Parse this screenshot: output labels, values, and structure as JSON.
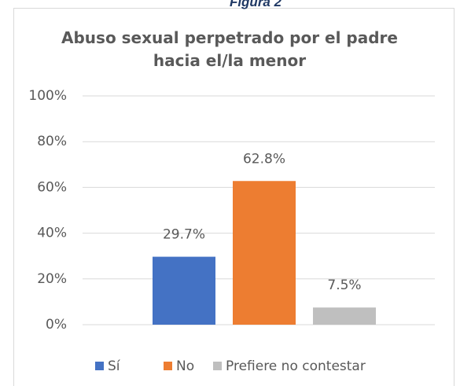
{
  "caption": "Figura 2",
  "chart_data": {
    "type": "bar",
    "title": "Abuso sexual perpetrado por el padre hacia el/la menor",
    "categories": [
      "Sí",
      "No",
      "Prefiere no contestar"
    ],
    "values": [
      29.7,
      62.8,
      7.5
    ],
    "value_labels": [
      "29.7%",
      "62.8%",
      "7.5%"
    ],
    "colors": [
      "#4472c4",
      "#ed7d31",
      "#bfbfbf"
    ],
    "ylim": [
      0,
      100
    ],
    "yticks": [
      {
        "value": 0,
        "label": "0%"
      },
      {
        "value": 20,
        "label": "20%"
      },
      {
        "value": 40,
        "label": "40%"
      },
      {
        "value": 60,
        "label": "60%"
      },
      {
        "value": 80,
        "label": "80%"
      },
      {
        "value": 100,
        "label": "100%"
      }
    ],
    "grid": true,
    "legend": "bottom"
  }
}
